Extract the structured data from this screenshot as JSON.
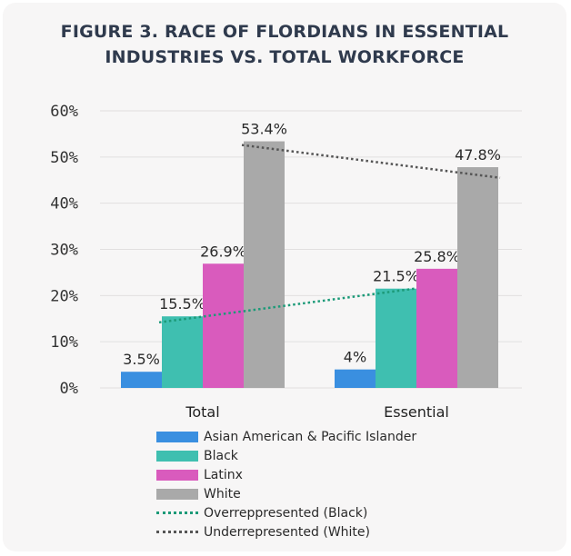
{
  "title_lines": [
    "FIGURE 3. RACE OF FLORDIANS IN ESSENTIAL",
    "INDUSTRIES VS. TOTAL WORKFORCE"
  ],
  "colors": {
    "asian": "#3a8fe0",
    "black": "#3fbfb0",
    "latinx": "#d95bbd",
    "white": "#a9a9a9",
    "over_line": "#1c9a78",
    "under_line": "#555555"
  },
  "chart_data": {
    "type": "bar",
    "categories": [
      "Total",
      "Essential"
    ],
    "series": [
      {
        "name": "Asian American & Pacific Islander",
        "values": [
          3.5,
          4
        ],
        "labels": [
          "3.5%",
          "4%"
        ],
        "color_key": "asian"
      },
      {
        "name": "Black",
        "values": [
          15.5,
          21.5
        ],
        "labels": [
          "15.5%",
          "21.5%"
        ],
        "color_key": "black"
      },
      {
        "name": "Latinx",
        "values": [
          26.9,
          25.8
        ],
        "labels": [
          "26.9%",
          "25.8%"
        ],
        "color_key": "latinx"
      },
      {
        "name": "White",
        "values": [
          53.4,
          47.8
        ],
        "labels": [
          "53.4%",
          "47.8%"
        ],
        "color_key": "white"
      }
    ],
    "trend_lines": [
      {
        "name": "Overreppresented (Black)",
        "from": {
          "category": "Total",
          "value": 14.2
        },
        "to": {
          "category": "Essential",
          "value": 21.5
        },
        "color_key": "over_line"
      },
      {
        "name": "Underrepresented (White)",
        "from": {
          "category": "Total",
          "value": 52.6
        },
        "to": {
          "category": "Essential",
          "value": 45.5
        },
        "color_key": "under_line"
      }
    ],
    "ylim": [
      0,
      60
    ],
    "yticks": [
      0,
      10,
      20,
      30,
      40,
      50,
      60
    ],
    "ytick_labels": [
      "0%",
      "10%",
      "20%",
      "30%",
      "40%",
      "50%",
      "60%"
    ],
    "grid": true,
    "legend_position": "bottom"
  }
}
